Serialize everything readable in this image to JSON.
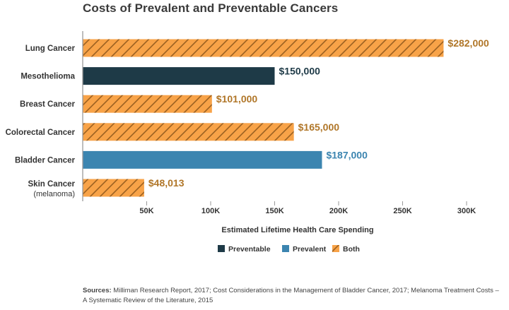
{
  "chart_data": {
    "type": "bar",
    "orientation": "horizontal",
    "title": "Costs of Prevalent and Preventable Cancers",
    "xlabel": "Estimated Lifetime Health Care Spending",
    "xlim": [
      0,
      300000
    ],
    "xticks": [
      50000,
      100000,
      150000,
      200000,
      250000,
      300000
    ],
    "xtick_labels": [
      "50K",
      "100K",
      "150K",
      "200K",
      "250K",
      "300K"
    ],
    "categories": [
      {
        "label": "Lung Cancer",
        "sublabel": "",
        "value": 282000,
        "value_label": "$282,000",
        "group": "both"
      },
      {
        "label": "Mesothelioma",
        "sublabel": "",
        "value": 150000,
        "value_label": "$150,000",
        "group": "preventable"
      },
      {
        "label": "Breast Cancer",
        "sublabel": "",
        "value": 101000,
        "value_label": "$101,000",
        "group": "both"
      },
      {
        "label": "Colorectal Cancer",
        "sublabel": "",
        "value": 165000,
        "value_label": "$165,000",
        "group": "both"
      },
      {
        "label": "Bladder Cancer",
        "sublabel": "",
        "value": 187000,
        "value_label": "$187,000",
        "group": "prevalent"
      },
      {
        "label": "Skin Cancer",
        "sublabel": "(melanoma)",
        "value": 48013,
        "value_label": "$48,013",
        "group": "both"
      }
    ],
    "legend": [
      {
        "key": "preventable",
        "name": "Preventable"
      },
      {
        "key": "prevalent",
        "name": "Prevalent"
      },
      {
        "key": "both",
        "name": "Both"
      }
    ],
    "legend_position": "bottom",
    "grid": false
  },
  "colors": {
    "preventable": "#1e3a47",
    "prevalent": "#3c85b0",
    "both_fill": "#f8a348",
    "both_hatch": "#9c6121",
    "both_label": "#b07628",
    "axis": "#9a9a9a"
  },
  "sources": {
    "label": "Sources:",
    "text": "Milliman Research Report, 2017; Cost Considerations in the Management of Bladder Cancer, 2017; Melanoma Treatment Costs – A Systematic Review of the Literature, 2015"
  }
}
